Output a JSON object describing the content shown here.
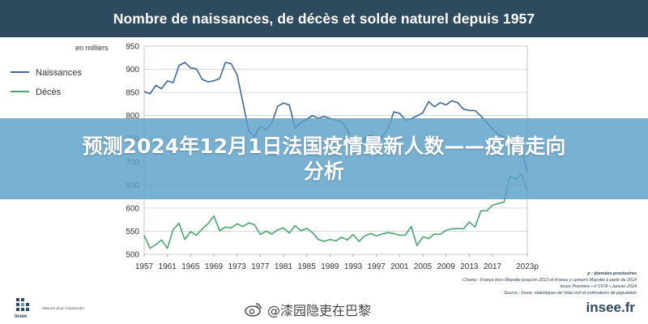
{
  "header": {
    "title": "Nombre de naissances, de décès et solde naturel depuis 1957"
  },
  "overlay": {
    "line1": "预测2024年12月1日法国疫情最新人数——疫情走向",
    "line2": "分析",
    "color": "#5ca0c8"
  },
  "chart_data": {
    "type": "line",
    "ylabel": "en milliers",
    "ylim": [
      500,
      950
    ],
    "yticks": [
      "500",
      "550",
      "600",
      "650",
      "700",
      "750",
      "800",
      "850",
      "900",
      "950"
    ],
    "xlim": [
      1957,
      2023
    ],
    "xticks": [
      "1957",
      "1961",
      "1965",
      "1969",
      "1973",
      "1977",
      "1981",
      "1985",
      "1989",
      "1993",
      "1997",
      "2001",
      "2005",
      "2009",
      "2013",
      "2017",
      "2023p"
    ],
    "grid": "horizontal",
    "legend_position": "top-left",
    "series": [
      {
        "name": "Naissances",
        "color": "#3a6a9e",
        "x": [
          1957,
          1958,
          1959,
          1960,
          1961,
          1962,
          1963,
          1964,
          1965,
          1966,
          1967,
          1968,
          1969,
          1970,
          1971,
          1972,
          1973,
          1974,
          1975,
          1976,
          1977,
          1978,
          1979,
          1980,
          1981,
          1982,
          1983,
          1984,
          1985,
          1986,
          1987,
          1988,
          1989,
          1990,
          1991,
          1992,
          1993,
          1994,
          1995,
          1996,
          1997,
          1998,
          1999,
          2000,
          2001,
          2002,
          2003,
          2004,
          2005,
          2006,
          2007,
          2008,
          2009,
          2010,
          2011,
          2012,
          2013,
          2014,
          2015,
          2016,
          2017,
          2018,
          2019,
          2020,
          2021,
          2022,
          2023
        ],
        "values": [
          852,
          847,
          865,
          858,
          875,
          871,
          908,
          915,
          903,
          901,
          878,
          873,
          875,
          880,
          915,
          912,
          888,
          829,
          767,
          754,
          778,
          769,
          784,
          820,
          827,
          823,
          773,
          785,
          792,
          800,
          794,
          798,
          794,
          790,
          787,
          770,
          726,
          723,
          752,
          758,
          752,
          754,
          771,
          808,
          805,
          790,
          793,
          799,
          806,
          830,
          819,
          828,
          823,
          832,
          828,
          814,
          811,
          811,
          799,
          785,
          771,
          759,
          753,
          735,
          742,
          726,
          678
        ]
      },
      {
        "name": "Décès",
        "color": "#4aa66e",
        "x": [
          1957,
          1958,
          1959,
          1960,
          1961,
          1962,
          1963,
          1964,
          1965,
          1966,
          1967,
          1968,
          1969,
          1970,
          1971,
          1972,
          1973,
          1974,
          1975,
          1976,
          1977,
          1978,
          1979,
          1980,
          1981,
          1982,
          1983,
          1984,
          1985,
          1986,
          1987,
          1988,
          1989,
          1990,
          1991,
          1992,
          1993,
          1994,
          1995,
          1996,
          1997,
          1998,
          1999,
          2000,
          2001,
          2002,
          2003,
          2004,
          2005,
          2006,
          2007,
          2008,
          2009,
          2010,
          2011,
          2012,
          2013,
          2014,
          2015,
          2016,
          2017,
          2018,
          2019,
          2020,
          2021,
          2022,
          2023
        ],
        "values": [
          541,
          513,
          521,
          531,
          513,
          554,
          567,
          532,
          549,
          541,
          555,
          566,
          583,
          551,
          559,
          557,
          566,
          560,
          568,
          564,
          543,
          550,
          544,
          553,
          557,
          546,
          562,
          551,
          556,
          547,
          532,
          528,
          532,
          529,
          537,
          531,
          543,
          528,
          540,
          545,
          540,
          544,
          547,
          545,
          541,
          542,
          560,
          519,
          538,
          534,
          544,
          543,
          552,
          555,
          556,
          555,
          570,
          559,
          594,
          594,
          606,
          610,
          613,
          669,
          663,
          674,
          637
        ]
      }
    ]
  },
  "source": {
    "line1": "p : données provisoires",
    "line2": "Champ : France hors Mayotte jusqu'en 2013 et France y compris Mayotte à partir de 2014",
    "line3": "Insee Première • n°1978 • Janvier 2024",
    "line4": "Source : Insee, statistiques de l'état civil et estimations de population"
  },
  "branding": {
    "insee_caption": "Mesurer pour comprendre",
    "insee_word": "Insee",
    "weibo_handle": "@漆园隐吏在巴黎",
    "insee_fr": "insee.fr",
    "weibo_icon": "weibo-icon",
    "insee_logo_icon": "insee-logo-icon"
  }
}
